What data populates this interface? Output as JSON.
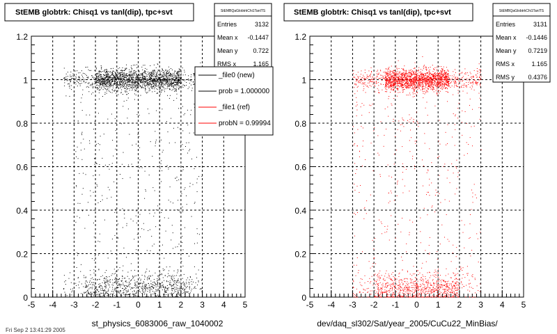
{
  "chart_data": [
    {
      "type": "scatter",
      "title": "StEMB globtrk: Chisq1 vs tanl(dip), tpc+svt",
      "xlabel": "st_physics_6083006_raw_1040002",
      "ylabel": "",
      "xlim": [
        -5,
        5
      ],
      "ylim": [
        0,
        1.2
      ],
      "x_ticks": [
        "-5",
        "-4",
        "-3",
        "-2",
        "-1",
        "0",
        "1",
        "2",
        "3",
        "4",
        "5"
      ],
      "y_ticks": [
        "0",
        "0.2",
        "0.4",
        "0.6",
        "0.8",
        "1",
        "1.2"
      ],
      "grid": true,
      "marker_color": "#000000",
      "stats": {
        "name": "StEMBQaGlobtrkChi1TanlTS",
        "rows": [
          {
            "label": "Entries",
            "value": "3132"
          },
          {
            "label": "Mean x",
            "value": "-0.1447"
          },
          {
            "label": "Mean y",
            "value": "0.722"
          },
          {
            "label": "RMS x",
            "value": "1.165"
          }
        ]
      },
      "legend": {
        "placement": "top-right",
        "entries": [
          {
            "label": "_file0 (new)",
            "color": "#000000"
          },
          {
            "label": "prob = 1.000000",
            "color": "#000000"
          },
          {
            "label": "_file1 (ref)",
            "color": "#ff0000"
          },
          {
            "label": "probN = 0.99994",
            "color": "#ff0000"
          }
        ]
      },
      "series": [
        {
          "distribution": [
            {
              "y_center": 1.0,
              "y_spread": 0.025,
              "x_range": [
                -3.5,
                3.0
              ],
              "x_core": [
                -2.0,
                2.0
              ],
              "count": 1900
            },
            {
              "y_center": 0.04,
              "y_spread": 0.035,
              "x_range": [
                -3.5,
                3.0
              ],
              "x_core": [
                -2.5,
                2.5
              ],
              "count": 900
            },
            {
              "y_range": [
                0.1,
                0.95
              ],
              "x_range": [
                -3.0,
                3.0
              ],
              "count": 332
            }
          ]
        }
      ]
    },
    {
      "type": "scatter",
      "title": "StEMB globtrk: Chisq1 vs tanl(dip), tpc+svt",
      "xlabel": "dev/daq_sl302/Sat/year_2005/CuCu22_MinBias/",
      "ylabel": "",
      "xlim": [
        -5,
        5
      ],
      "ylim": [
        0,
        1.2
      ],
      "x_ticks": [
        "-5",
        "-4",
        "-3",
        "-2",
        "-1",
        "0",
        "1",
        "2",
        "3",
        "4",
        "5"
      ],
      "y_ticks": [
        "0",
        "0.2",
        "0.4",
        "0.6",
        "0.8",
        "1",
        "1.2"
      ],
      "grid": true,
      "marker_color": "#ff0000",
      "stats": {
        "name": "StEMBQaGlobtrkChi1TanlTS",
        "rows": [
          {
            "label": "Entries",
            "value": "3131"
          },
          {
            "label": "Mean x",
            "value": "-0.1446"
          },
          {
            "label": "Mean y",
            "value": "0.7219"
          },
          {
            "label": "RMS x",
            "value": "1.165"
          },
          {
            "label": "RMS y",
            "value": "0.4376"
          }
        ]
      },
      "series": [
        {
          "distribution": [
            {
              "y_center": 1.0,
              "y_spread": 0.025,
              "x_range": [
                -3.0,
                3.0
              ],
              "x_core": [
                -1.5,
                1.5
              ],
              "count": 1900
            },
            {
              "y_center": 0.04,
              "y_spread": 0.035,
              "x_range": [
                -3.0,
                3.0
              ],
              "x_core": [
                -2.0,
                2.0
              ],
              "count": 900
            },
            {
              "y_range": [
                0.1,
                0.95
              ],
              "x_range": [
                -3.0,
                3.0
              ],
              "count": 331
            }
          ]
        }
      ]
    }
  ],
  "footer": {
    "text": "Fri Sep  2 13:41:29 2005"
  }
}
